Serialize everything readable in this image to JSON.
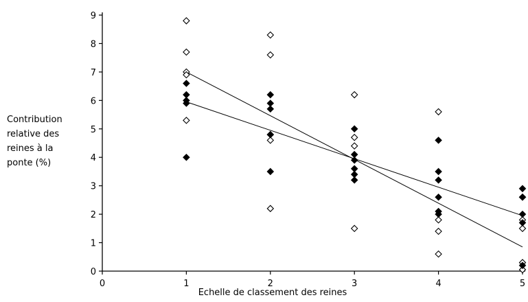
{
  "chart_data": {
    "type": "scatter",
    "xlabel": "Echelle de classement des reines",
    "ylabel_lines": [
      "Contribution",
      "relative des",
      "reines à la",
      "ponte (%)"
    ],
    "xlim": [
      0,
      5
    ],
    "ylim": [
      0,
      9
    ],
    "x_ticks": [
      0,
      1,
      2,
      3,
      4,
      5
    ],
    "y_ticks": [
      0,
      1,
      2,
      3,
      4,
      5,
      6,
      7,
      8,
      9
    ],
    "grid": false,
    "legend": "none",
    "series": [
      {
        "marker": "open-diamond",
        "points": [
          [
            1,
            8.8
          ],
          [
            1,
            7.7
          ],
          [
            1,
            7.0
          ],
          [
            1,
            6.9
          ],
          [
            1,
            5.3
          ],
          [
            2,
            8.3
          ],
          [
            2,
            7.6
          ],
          [
            2,
            4.8
          ],
          [
            2,
            4.6
          ],
          [
            2,
            2.2
          ],
          [
            3,
            6.2
          ],
          [
            3,
            4.7
          ],
          [
            3,
            4.4
          ],
          [
            3,
            1.5
          ],
          [
            4,
            5.6
          ],
          [
            4,
            1.8
          ],
          [
            4,
            1.4
          ],
          [
            4,
            0.6
          ],
          [
            5,
            2.6
          ],
          [
            5,
            1.8
          ],
          [
            5,
            1.5
          ],
          [
            5,
            0.3
          ],
          [
            5,
            0.05
          ]
        ]
      },
      {
        "marker": "filled-diamond",
        "points": [
          [
            1,
            6.6
          ],
          [
            1,
            6.2
          ],
          [
            1,
            6.0
          ],
          [
            1,
            5.9
          ],
          [
            1,
            4.0
          ],
          [
            2,
            6.2
          ],
          [
            2,
            5.9
          ],
          [
            2,
            5.7
          ],
          [
            2,
            4.8
          ],
          [
            2,
            3.5
          ],
          [
            3,
            5.0
          ],
          [
            3,
            4.1
          ],
          [
            3,
            3.9
          ],
          [
            3,
            3.6
          ],
          [
            3,
            3.4
          ],
          [
            3,
            3.2
          ],
          [
            4,
            4.6
          ],
          [
            4,
            3.5
          ],
          [
            4,
            3.2
          ],
          [
            4,
            2.6
          ],
          [
            4,
            2.1
          ],
          [
            4,
            2.0
          ],
          [
            5,
            2.9
          ],
          [
            5,
            2.6
          ],
          [
            5,
            2.0
          ],
          [
            5,
            1.7
          ],
          [
            5,
            0.2
          ]
        ]
      }
    ],
    "trend_lines": [
      {
        "x": [
          1,
          5
        ],
        "y": [
          7.0,
          0.85
        ]
      },
      {
        "x": [
          1,
          5
        ],
        "y": [
          5.95,
          1.95
        ]
      }
    ],
    "colors": {
      "ink": "#000000",
      "background": "#ffffff"
    }
  }
}
